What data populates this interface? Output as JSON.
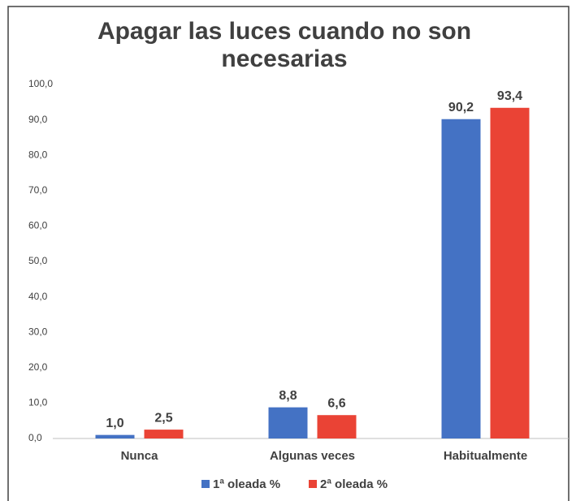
{
  "chart_data": {
    "type": "bar",
    "title": "Apagar las luces  cuando no son necesarias",
    "categories": [
      "Nunca",
      "Algunas veces",
      "Habitualmente"
    ],
    "series": [
      {
        "name": "1ª oleada %",
        "color": "#4472c4",
        "values": [
          1.0,
          8.8,
          90.2
        ],
        "value_labels": [
          "1,0",
          "8,8",
          "90,2"
        ]
      },
      {
        "name": "2ª oleada %",
        "color": "#ea4335",
        "values": [
          2.5,
          6.6,
          93.4
        ],
        "value_labels": [
          "2,5",
          "6,6",
          "93,4"
        ]
      }
    ],
    "ylim": [
      0,
      100
    ],
    "yticks": [
      {
        "value": 0,
        "label": "0,0"
      },
      {
        "value": 10,
        "label": "10,0"
      },
      {
        "value": 20,
        "label": "20,0"
      },
      {
        "value": 30,
        "label": "30,0"
      },
      {
        "value": 40,
        "label": "40,0"
      },
      {
        "value": 50,
        "label": "50,0"
      },
      {
        "value": 60,
        "label": "60,0"
      },
      {
        "value": 70,
        "label": "70,0"
      },
      {
        "value": 80,
        "label": "80,0"
      },
      {
        "value": 90,
        "label": "90,0"
      },
      {
        "value": 100,
        "label": "100,0"
      }
    ],
    "legend": "bottom"
  }
}
